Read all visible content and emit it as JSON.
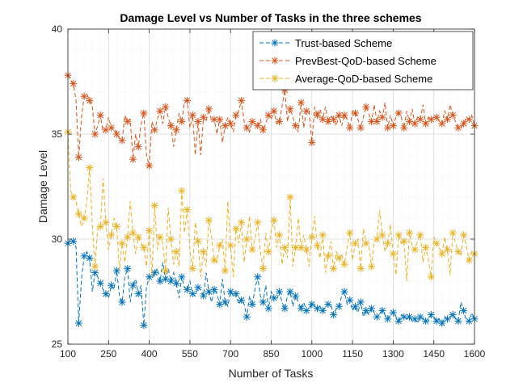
{
  "chart_data": {
    "type": "line",
    "title": "Damage Level vs Number of Tasks in the three schemes",
    "xlabel": "Number of Tasks",
    "ylabel": "Damage Level",
    "xlim": [
      100,
      1600
    ],
    "ylim": [
      25,
      40
    ],
    "xticks": [
      100,
      250,
      400,
      550,
      700,
      850,
      1000,
      1150,
      1300,
      1450,
      1600
    ],
    "yticks": [
      25,
      30,
      35,
      40
    ],
    "grid": true,
    "legend_position": "top-right",
    "x": [
      100,
      110,
      120,
      130,
      140,
      150,
      160,
      170,
      180,
      190,
      200,
      210,
      220,
      230,
      240,
      250,
      260,
      270,
      280,
      290,
      300,
      310,
      320,
      330,
      340,
      350,
      360,
      370,
      380,
      390,
      400,
      410,
      420,
      430,
      440,
      450,
      460,
      470,
      480,
      490,
      500,
      510,
      520,
      530,
      540,
      550,
      560,
      570,
      580,
      590,
      600,
      610,
      620,
      630,
      640,
      650,
      660,
      670,
      680,
      690,
      700,
      710,
      720,
      730,
      740,
      750,
      760,
      770,
      780,
      790,
      800,
      810,
      820,
      830,
      840,
      850,
      860,
      870,
      880,
      890,
      900,
      910,
      920,
      930,
      940,
      950,
      960,
      970,
      980,
      990,
      1000,
      1010,
      1020,
      1030,
      1040,
      1050,
      1060,
      1070,
      1080,
      1090,
      1100,
      1110,
      1120,
      1130,
      1140,
      1150,
      1160,
      1170,
      1180,
      1190,
      1200,
      1210,
      1220,
      1230,
      1240,
      1250,
      1260,
      1270,
      1280,
      1290,
      1300,
      1310,
      1320,
      1330,
      1340,
      1350,
      1360,
      1370,
      1380,
      1390,
      1400,
      1410,
      1420,
      1430,
      1440,
      1450,
      1460,
      1470,
      1480,
      1490,
      1500,
      1510,
      1520,
      1530,
      1540,
      1550,
      1560,
      1570,
      1580,
      1590,
      1600
    ],
    "series": [
      {
        "name": "Trust-based Scheme",
        "color": "#0072BD",
        "values": [
          29.8,
          30.0,
          29.9,
          29.6,
          26.0,
          28.1,
          29.2,
          29.4,
          29.1,
          27.5,
          28.4,
          28.2,
          27.9,
          27.6,
          27.4,
          27.2,
          27.8,
          27.6,
          28.5,
          27.3,
          27.0,
          28.2,
          28.6,
          27.0,
          27.8,
          28.1,
          27.4,
          27.8,
          25.9,
          27.7,
          28.2,
          28.1,
          28.4,
          28.6,
          28.0,
          28.9,
          28.1,
          28.6,
          28.0,
          28.4,
          27.9,
          27.2,
          28.2,
          27.7,
          27.6,
          28.0,
          27.4,
          27.3,
          27.7,
          27.6,
          27.3,
          28.4,
          27.5,
          27.0,
          27.6,
          27.4,
          26.9,
          28.1,
          27.0,
          26.8,
          27.5,
          27.3,
          27.4,
          26.9,
          27.1,
          26.9,
          26.3,
          27.3,
          26.9,
          27.6,
          28.2,
          27.3,
          27.0,
          27.8,
          26.7,
          27.5,
          27.2,
          27.1,
          27.5,
          27.0,
          26.7,
          27.3,
          27.5,
          26.8,
          27.3,
          27.0,
          26.7,
          27.0,
          26.6,
          26.6,
          26.9,
          26.8,
          26.7,
          26.8,
          26.6,
          26.8,
          26.9,
          26.9,
          26.4,
          26.7,
          26.8,
          27.3,
          27.5,
          26.9,
          27.1,
          26.6,
          26.8,
          26.5,
          27.0,
          26.3,
          26.6,
          26.4,
          26.7,
          26.5,
          26.3,
          26.4,
          26.6,
          26.4,
          26.2,
          26.5,
          26.5,
          26.3,
          26.1,
          26.4,
          26.3,
          26.2,
          26.3,
          26.1,
          26.2,
          26.0,
          26.3,
          26.2,
          26.1,
          26.1,
          26.4,
          26.3,
          26.1,
          26.2,
          26.0,
          26.3,
          26.2,
          26.3,
          26.4,
          26.2,
          26.1,
          27.0,
          26.6,
          26.1,
          26.1,
          26.5,
          26.2
        ],
        "description_note": ""
      },
      {
        "name": "PrevBest-QoD-based Scheme",
        "color": "#D95319",
        "values": [
          37.8,
          37.6,
          37.4,
          36.6,
          33.9,
          35.8,
          36.8,
          36.9,
          36.6,
          36.3,
          35.0,
          35.4,
          35.9,
          35.1,
          35.2,
          35.8,
          35.3,
          35.3,
          35.0,
          34.8,
          34.7,
          35.9,
          35.6,
          35.7,
          33.8,
          35.0,
          34.4,
          35.5,
          36.0,
          34.0,
          33.5,
          35.6,
          35.2,
          35.7,
          36.1,
          35.5,
          36.3,
          35.8,
          35.4,
          34.4,
          35.2,
          36.0,
          35.6,
          36.5,
          36.6,
          35.3,
          35.9,
          34.0,
          35.6,
          34.0,
          35.8,
          35.6,
          36.2,
          35.6,
          35.7,
          35.0,
          35.7,
          34.6,
          35.4,
          35.8,
          35.5,
          35.1,
          35.9,
          36.1,
          36.6,
          35.6,
          35.3,
          35.1,
          35.6,
          35.5,
          35.4,
          35.7,
          35.2,
          35.5,
          35.9,
          35.7,
          36.1,
          35.5,
          35.6,
          36.3,
          37.1,
          35.6,
          36.2,
          35.8,
          35.4,
          35.1,
          36.5,
          35.3,
          36.1,
          36.1,
          34.6,
          36.3,
          35.9,
          36.2,
          35.7,
          36.3,
          35.6,
          35.9,
          35.7,
          35.4,
          35.9,
          35.4,
          35.9,
          35.7,
          35.3,
          36.1,
          36.0,
          35.7,
          35.3,
          35.8,
          36.3,
          36.0,
          35.6,
          36.4,
          35.6,
          36.1,
          35.8,
          36.5,
          35.3,
          35.9,
          35.4,
          35.8,
          36.0,
          35.8,
          35.3,
          36.1,
          35.6,
          36.2,
          35.5,
          35.8,
          35.7,
          36.4,
          35.5,
          35.8,
          35.7,
          35.8,
          35.8,
          35.6,
          35.5,
          36.1,
          35.7,
          36.4,
          35.9,
          35.6,
          35.3,
          35.3,
          35.5,
          35.8,
          35.7,
          35.9,
          35.4
        ],
        "description_note": ""
      },
      {
        "name": "Average-QoD-based Scheme",
        "color": "#EDB120",
        "values": [
          35.1,
          32.3,
          32.0,
          31.8,
          31.2,
          30.6,
          31.0,
          31.8,
          33.4,
          30.7,
          28.7,
          30.5,
          30.6,
          32.9,
          30.8,
          29.5,
          30.2,
          31.0,
          30.6,
          28.5,
          29.8,
          28.9,
          30.1,
          31.8,
          30.3,
          29.3,
          30.1,
          29.8,
          29.6,
          28.7,
          30.4,
          28.2,
          31.6,
          29.5,
          30.1,
          29.8,
          28.5,
          31.5,
          30.0,
          28.8,
          29.4,
          28.7,
          32.3,
          30.3,
          31.4,
          29.5,
          28.6,
          30.8,
          29.9,
          28.2,
          29.4,
          28.7,
          30.9,
          30.1,
          29.0,
          28.9,
          29.7,
          30.0,
          28.5,
          31.8,
          29.7,
          28.2,
          30.5,
          29.8,
          30.8,
          28.9,
          30.0,
          31.1,
          29.5,
          30.0,
          30.8,
          29.4,
          28.6,
          30.3,
          29.4,
          30.4,
          30.9,
          29.6,
          30.2,
          28.8,
          29.6,
          29.1,
          32.0,
          28.7,
          29.6,
          31.0,
          29.6,
          30.2,
          29.5,
          28.7,
          30.1,
          31.1,
          29.7,
          29.1,
          30.2,
          28.4,
          29.2,
          29.9,
          28.6,
          29.4,
          29.1,
          29.3,
          28.8,
          29.6,
          30.3,
          29.0,
          29.8,
          30.0,
          28.6,
          30.5,
          29.8,
          29.7,
          28.7,
          29.9,
          30.0,
          31.4,
          30.2,
          29.4,
          29.8,
          30.7,
          29.3,
          28.3,
          30.2,
          29.8,
          29.9,
          28.0,
          30.3,
          29.7,
          29.5,
          29.9,
          30.2,
          28.9,
          29.6,
          29.0,
          28.2,
          30.1,
          29.8,
          29.6,
          29.3,
          30.1,
          29.5,
          28.3,
          30.3,
          29.8,
          29.4,
          29.2,
          30.2,
          29.7,
          29.0,
          29.4,
          29.3
        ],
        "description_note": ""
      }
    ]
  }
}
